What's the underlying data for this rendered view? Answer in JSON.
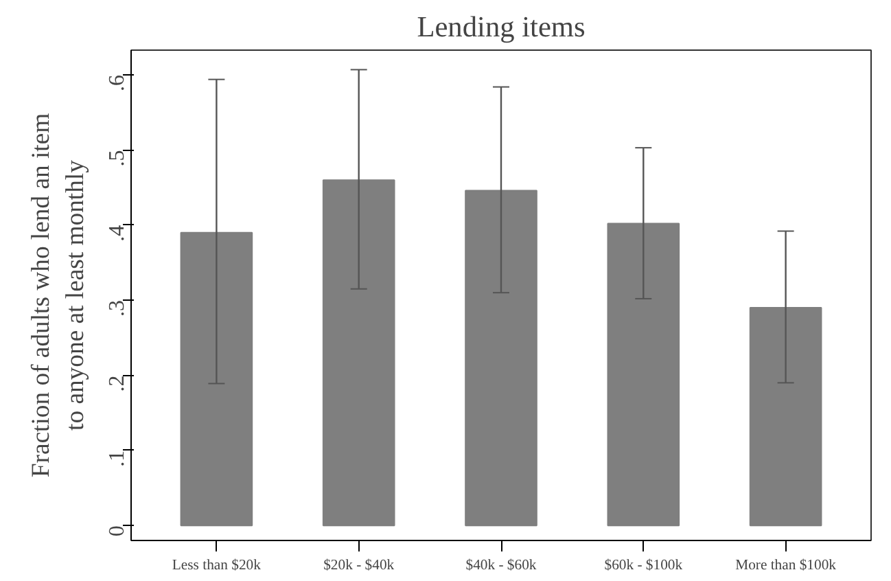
{
  "chart_data": {
    "type": "bar",
    "title": "Lending items",
    "ylabel": "Fraction of adults who lend an item\nto anyone at least monthly",
    "categories": [
      "Less than $20k",
      "$20k - $40k",
      "$40k - $60k",
      "$60k - $100k",
      "More than $100k"
    ],
    "values": [
      0.39,
      0.46,
      0.446,
      0.402,
      0.29
    ],
    "errors": [
      [
        0.189,
        0.594
      ],
      [
        0.315,
        0.607
      ],
      [
        0.31,
        0.584
      ],
      [
        0.302,
        0.503
      ],
      [
        0.19,
        0.392
      ]
    ],
    "color": "#7f7f7f",
    "ylim": [
      -0.02,
      0.633
    ],
    "yticks": [
      {
        "value": 0,
        "label": "0"
      },
      {
        "value": 0.1,
        "label": ".1"
      },
      {
        "value": 0.2,
        "label": ".2"
      },
      {
        "value": 0.3,
        "label": ".3"
      },
      {
        "value": 0.4,
        "label": ".4"
      },
      {
        "value": 0.5,
        "label": ".5"
      },
      {
        "value": 0.6,
        "label": ".6"
      }
    ],
    "grid": false
  }
}
